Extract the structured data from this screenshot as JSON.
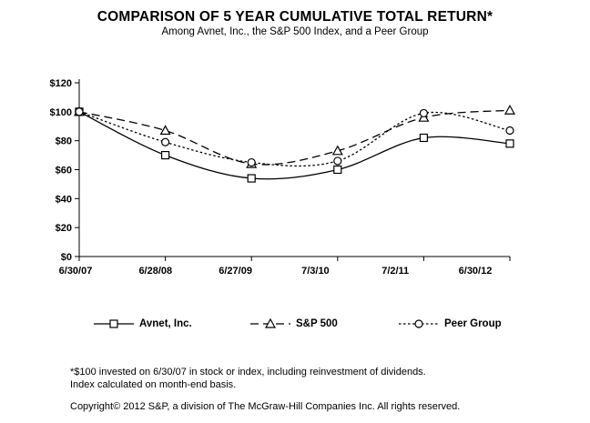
{
  "page": {
    "title": "COMPARISON OF 5 YEAR CUMULATIVE TOTAL RETURN*",
    "subtitle": "Among Avnet, Inc., the S&P 500 Index, and a Peer Group"
  },
  "chart_data": {
    "type": "line",
    "title": "COMPARISON OF 5 YEAR CUMULATIVE TOTAL RETURN*",
    "subtitle": "Among Avnet, Inc., the S&P 500 Index, and a Peer Group",
    "categories": [
      "6/30/07",
      "6/28/08",
      "6/27/09",
      "7/3/10",
      "7/2/11",
      "6/30/12"
    ],
    "series": [
      {
        "name": "Avnet, Inc.",
        "values": [
          100,
          70,
          54,
          60,
          82,
          78
        ],
        "line_style": "solid",
        "marker": "square"
      },
      {
        "name": "S&P 500",
        "values": [
          100,
          87,
          64,
          73,
          96,
          101
        ],
        "line_style": "long-dash",
        "marker": "triangle"
      },
      {
        "name": "Peer Group",
        "values": [
          100,
          79,
          65,
          66,
          99,
          87
        ],
        "line_style": "dotted",
        "marker": "circle"
      }
    ],
    "xlabel": "",
    "ylabel": "",
    "ylim": [
      0,
      120
    ],
    "y_tick_labels": [
      "$0",
      "$20",
      "$40",
      "$60",
      "$80",
      "$100",
      "$120"
    ],
    "grid": false,
    "smoothed": true,
    "legend_position": "bottom",
    "line_color": "#000000",
    "background_color": "#ffffff"
  },
  "footnotes": {
    "line1": "*$100 invested on 6/30/07 in stock or index, including reinvestment of dividends.",
    "line2": "Index calculated on month-end basis.",
    "copyright": "Copyright© 2012 S&P, a division of The McGraw-Hill Companies Inc. All rights reserved."
  }
}
